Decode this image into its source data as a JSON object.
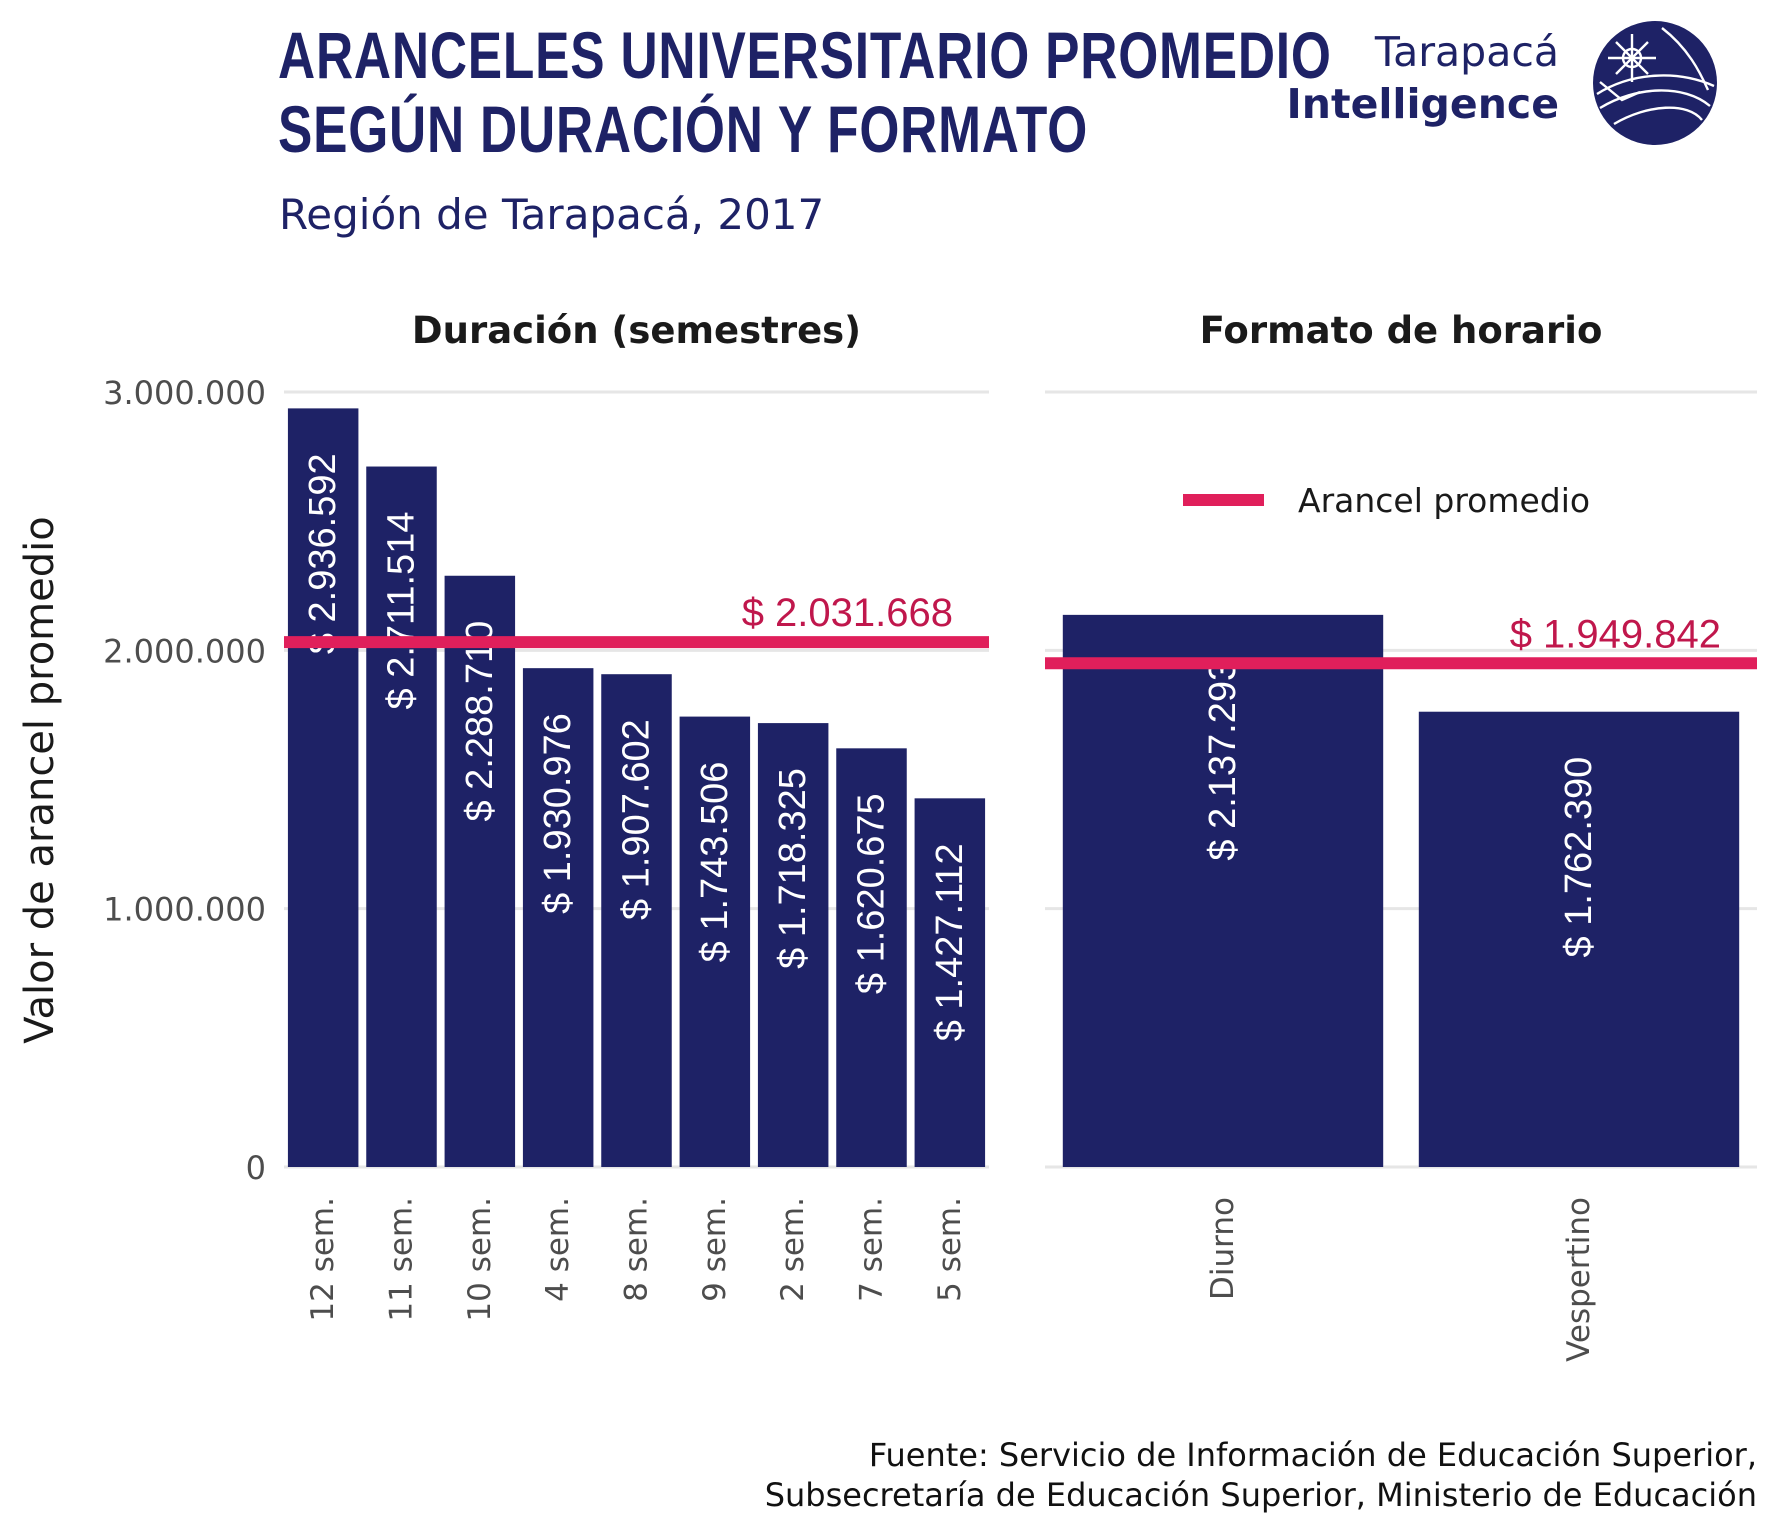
{
  "title_lines": [
    "ARANCELES UNIVERSITARIO PROMEDIO",
    "SEGÚN DURACIÓN Y FORMATO"
  ],
  "subtitle": "Región de Tarapacá, 2017",
  "brand": {
    "line1": "Tarapacá",
    "line2": "Intelligence",
    "logo_icon": "globe-compass-icon"
  },
  "source_lines": [
    "Fuente: Servicio de Información de Educación Superior,",
    "Subsecretaría de Educación Superior, Ministerio de Educación"
  ],
  "colors": {
    "bar": "#1e2266",
    "mean_line": "#e01f5b",
    "mean_label": "#c0174c",
    "grid": "#e6e6e6",
    "title": "#1e2266"
  },
  "chart_data": [
    {
      "type": "bar",
      "panel_title": "Duración (semestres)",
      "categories": [
        "12 sem.",
        "11 sem.",
        "10 sem.",
        "4 sem.",
        "8 sem.",
        "9 sem.",
        "2 sem.",
        "7 sem.",
        "5 sem."
      ],
      "values": [
        2936592,
        2711514,
        2288710,
        1930976,
        1907602,
        1743506,
        1718325,
        1620675,
        1427112
      ],
      "value_labels": [
        "$ 2.936.592",
        "$ 2.711.514",
        "$ 2.288.710",
        "$ 1.930.976",
        "$ 1.907.602",
        "$ 1.743.506",
        "$ 1.718.325",
        "$ 1.620.675",
        "$ 1.427.112"
      ],
      "mean": 2031668,
      "mean_label": "$ 2.031.668",
      "ylabel": "Valor de arancel promedio",
      "ylim": [
        0,
        3000000
      ],
      "yticks": [
        0,
        1000000,
        2000000,
        3000000
      ],
      "ytick_labels": [
        "0",
        "1.000.000",
        "2.000.000",
        "3.000.000"
      ],
      "grid": true
    },
    {
      "type": "bar",
      "panel_title": "Formato de horario",
      "categories": [
        "Diurno",
        "Vespertino"
      ],
      "values": [
        2137293,
        1762390
      ],
      "value_labels": [
        "$ 2.137.293",
        "$ 1.762.390"
      ],
      "mean": 1949842,
      "mean_label": "$ 1.949.842",
      "ylim": [
        0,
        3000000
      ],
      "yticks": [
        0,
        1000000,
        2000000,
        3000000
      ],
      "grid": true,
      "legend": {
        "label": "Arancel promedio",
        "position": "top-right"
      }
    }
  ]
}
